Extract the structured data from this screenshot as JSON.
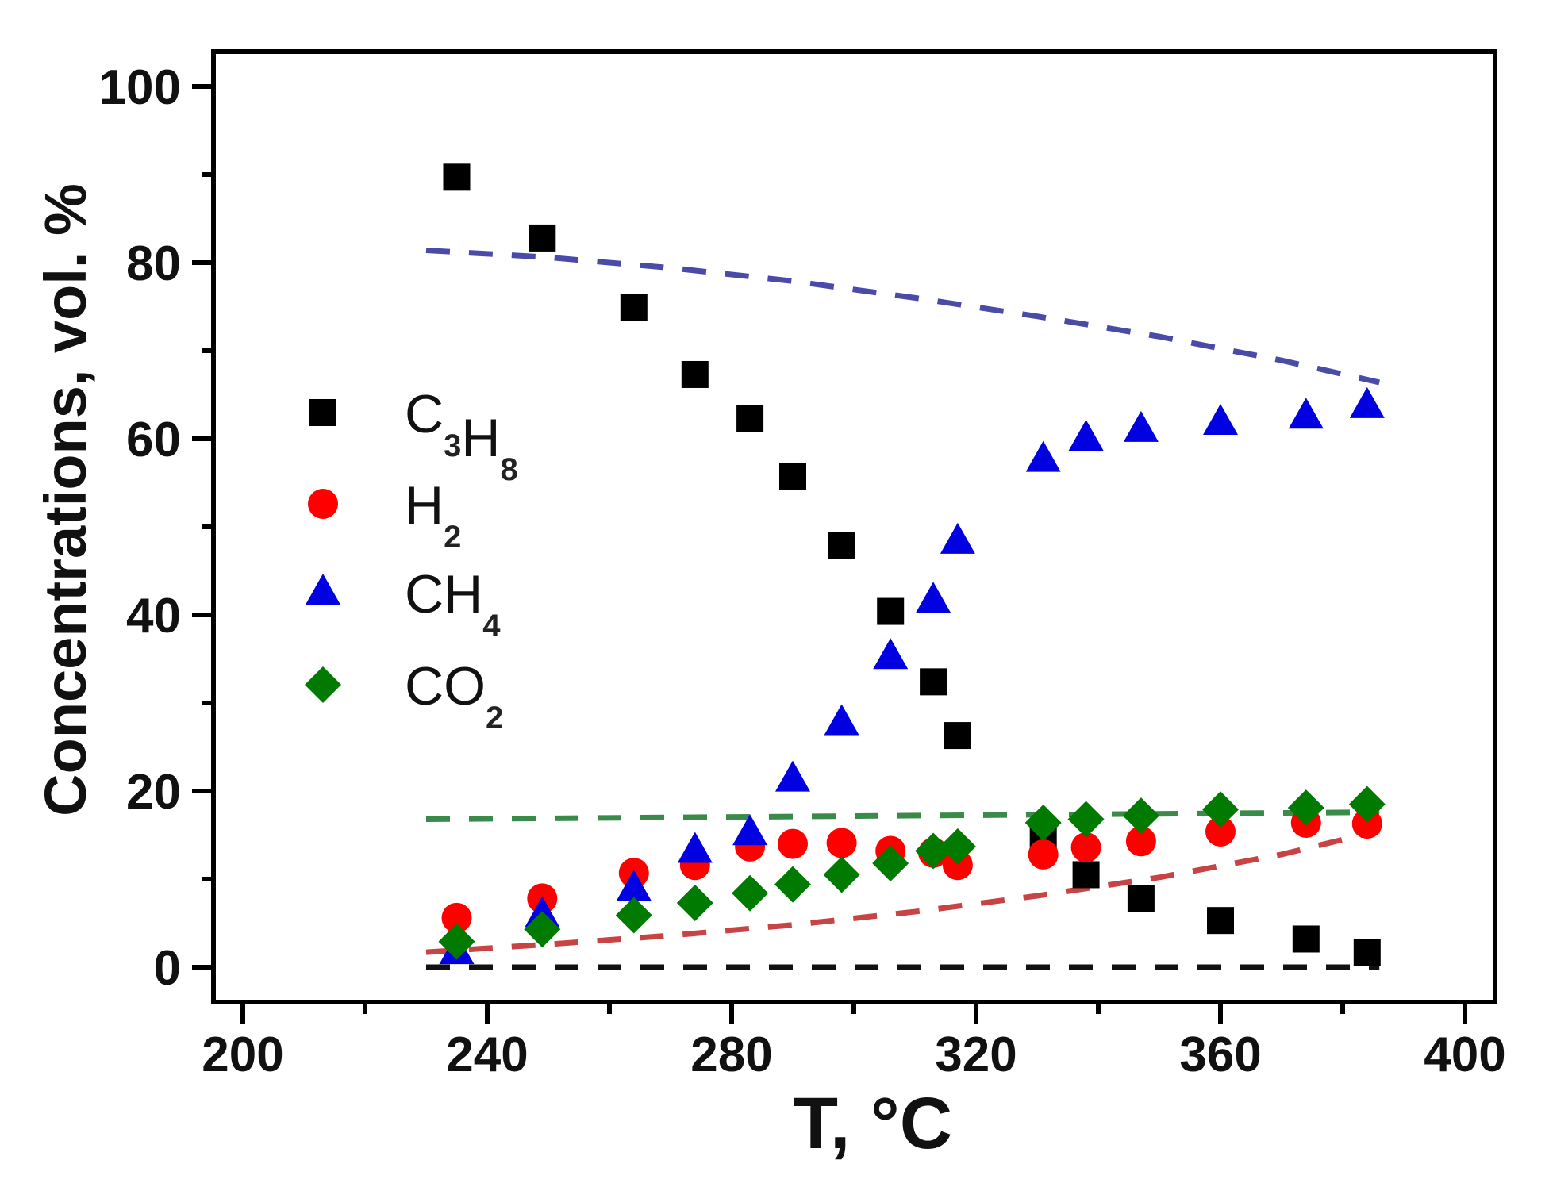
{
  "chart_data": {
    "type": "scatter",
    "title": "",
    "xlabel": "T, °C",
    "ylabel": "Concentrations, vol. %",
    "xlim": [
      195,
      405
    ],
    "ylim": [
      -4,
      104
    ],
    "x_ticks": [
      200,
      240,
      280,
      320,
      360,
      400
    ],
    "x_minor_ticks": [
      220,
      260,
      300,
      340,
      380
    ],
    "y_ticks": [
      0,
      20,
      40,
      60,
      80,
      100
    ],
    "y_minor_ticks": [
      10,
      30,
      50,
      70,
      90
    ],
    "grid": false,
    "legend_position": "left-middle",
    "series": [
      {
        "name": "C3H8",
        "label_main": [
          "C",
          "H"
        ],
        "label_subs": [
          "3",
          "8"
        ],
        "marker": "square",
        "color": "#000000",
        "x": [
          235,
          249,
          264,
          274,
          283,
          290,
          298,
          306,
          313,
          317,
          331,
          338,
          347,
          360,
          374,
          384
        ],
        "y": [
          89.7,
          82.8,
          74.9,
          67.3,
          62.3,
          55.7,
          47.9,
          40.4,
          32.4,
          26.3,
          15.0,
          10.5,
          7.8,
          5.3,
          3.2,
          1.7
        ]
      },
      {
        "name": "H2",
        "label_main": [
          "H"
        ],
        "label_subs": [
          "2"
        ],
        "marker": "circle",
        "color": "#ff0000",
        "x": [
          235,
          249,
          264,
          274,
          283,
          290,
          298,
          306,
          313,
          317,
          331,
          338,
          347,
          360,
          374,
          384
        ],
        "y": [
          5.6,
          7.8,
          10.7,
          11.6,
          13.7,
          14.0,
          14.1,
          13.2,
          13.0,
          11.6,
          12.8,
          13.6,
          14.3,
          15.4,
          16.4,
          16.3
        ]
      },
      {
        "name": "CH4",
        "label_main": [
          "CH"
        ],
        "label_subs": [
          "4"
        ],
        "marker": "triangle",
        "color": "#0000e0",
        "x": [
          235,
          249,
          264,
          274,
          283,
          290,
          298,
          306,
          313,
          317,
          331,
          338,
          347,
          360,
          374,
          384
        ],
        "y": [
          1.7,
          5.9,
          8.9,
          13.2,
          15.2,
          21.3,
          27.7,
          35.2,
          41.6,
          48.3,
          57.6,
          60.0,
          61.0,
          61.8,
          62.5,
          63.7
        ]
      },
      {
        "name": "CO2",
        "label_main": [
          "CO"
        ],
        "label_subs": [
          "2"
        ],
        "marker": "diamond",
        "color": "#007a00",
        "x": [
          235,
          249,
          264,
          274,
          283,
          290,
          298,
          306,
          313,
          317,
          331,
          338,
          347,
          360,
          374,
          384
        ],
        "y": [
          2.9,
          4.3,
          5.9,
          7.3,
          8.4,
          9.4,
          10.5,
          11.8,
          13.2,
          13.7,
          16.4,
          16.8,
          17.2,
          17.9,
          18.1,
          18.5
        ]
      }
    ],
    "equilibrium_lines": [
      {
        "name": "CH4 equilibrium",
        "style": "dashed",
        "color": "#4a4aa8",
        "x": [
          230,
          250,
          270,
          290,
          310,
          330,
          350,
          370,
          386
        ],
        "y": [
          81.4,
          80.6,
          79.4,
          77.9,
          76.0,
          73.9,
          71.6,
          68.9,
          66.4
        ]
      },
      {
        "name": "CO2 equilibrium",
        "style": "dashed",
        "color": "#3a8a4a",
        "x": [
          230,
          386
        ],
        "y": [
          16.8,
          17.6
        ]
      },
      {
        "name": "H2 equilibrium",
        "style": "dashed",
        "color": "#c84444",
        "x": [
          230,
          250,
          270,
          290,
          310,
          330,
          350,
          370,
          386
        ],
        "y": [
          1.7,
          2.6,
          3.6,
          4.8,
          6.3,
          8.1,
          10.2,
          12.8,
          15.5
        ]
      },
      {
        "name": "C3H8 equilibrium",
        "style": "dashed",
        "color": "#111111",
        "x": [
          230,
          386
        ],
        "y": [
          0,
          0
        ]
      }
    ]
  }
}
